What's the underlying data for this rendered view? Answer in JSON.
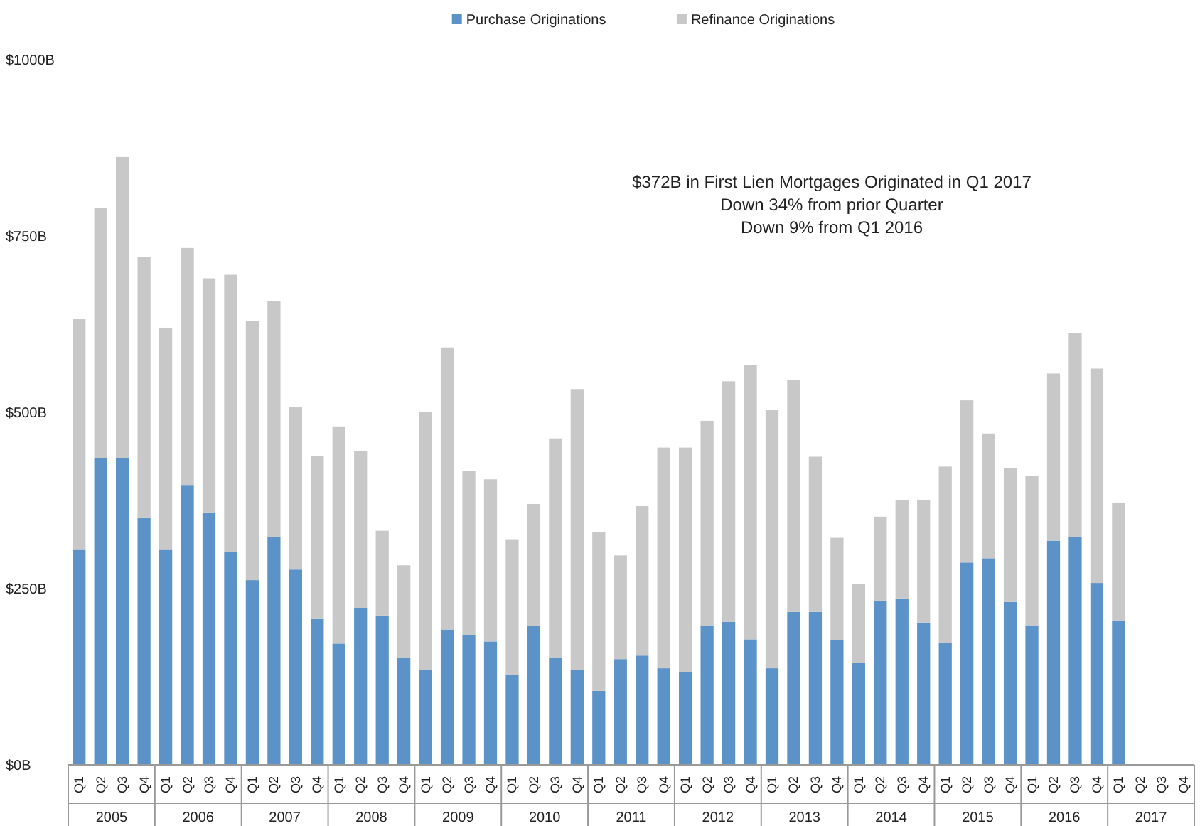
{
  "chart_data": {
    "type": "bar",
    "stacked": true,
    "categories": [
      "Q1",
      "Q2",
      "Q3",
      "Q4",
      "Q1",
      "Q2",
      "Q3",
      "Q4",
      "Q1",
      "Q2",
      "Q3",
      "Q4",
      "Q1",
      "Q2",
      "Q3",
      "Q4",
      "Q1",
      "Q2",
      "Q3",
      "Q4",
      "Q1",
      "Q2",
      "Q3",
      "Q4",
      "Q1",
      "Q2",
      "Q3",
      "Q4",
      "Q1",
      "Q2",
      "Q3",
      "Q4",
      "Q1",
      "Q2",
      "Q3",
      "Q4",
      "Q1",
      "Q2",
      "Q3",
      "Q4",
      "Q1",
      "Q2",
      "Q3",
      "Q4",
      "Q1",
      "Q2",
      "Q3",
      "Q4",
      "Q1",
      "Q2",
      "Q3",
      "Q4"
    ],
    "series": [
      {
        "name": "Purchase Originations",
        "color": "#5b93c8",
        "values": [
          305,
          435,
          435,
          350,
          305,
          397,
          358,
          302,
          262,
          323,
          277,
          207,
          172,
          222,
          212,
          152,
          135,
          192,
          184,
          175,
          128,
          197,
          152,
          135,
          105,
          150,
          155,
          137,
          132,
          198,
          203,
          178,
          137,
          217,
          217,
          177,
          145,
          233,
          236,
          202,
          173,
          287,
          293,
          231,
          198,
          318,
          323,
          258,
          205,
          null,
          null,
          null
        ]
      },
      {
        "name": "Refinance Originations",
        "color": "#c8c8c8",
        "values": [
          327,
          355,
          427,
          370,
          315,
          336,
          332,
          393,
          368,
          335,
          230,
          231,
          308,
          223,
          120,
          131,
          365,
          400,
          233,
          230,
          192,
          173,
          311,
          398,
          225,
          147,
          212,
          313,
          318,
          290,
          341,
          389,
          366,
          329,
          220,
          145,
          112,
          119,
          139,
          173,
          250,
          230,
          177,
          190,
          212,
          237,
          289,
          304,
          167,
          null,
          null,
          null
        ]
      }
    ],
    "ylim": [
      0,
      1000
    ],
    "yticks": [
      {
        "value": 0,
        "label": "$0B"
      },
      {
        "value": 250,
        "label": "$250B"
      },
      {
        "value": 500,
        "label": "$500B"
      },
      {
        "value": 750,
        "label": "$750B"
      },
      {
        "value": 1000,
        "label": "$1000B"
      }
    ],
    "grid": false,
    "legend": "top",
    "annotations": [
      "$372B in First Lien Mortgages Originated in Q1 2017",
      "Down 34% from prior Quarter",
      "Down 9% from Q1 2016",
      "2005",
      "2006",
      "2007",
      "2008",
      "2009",
      "2010",
      "2011",
      "2012",
      "2013",
      "2014",
      "2015",
      "2016",
      "2017"
    ]
  }
}
